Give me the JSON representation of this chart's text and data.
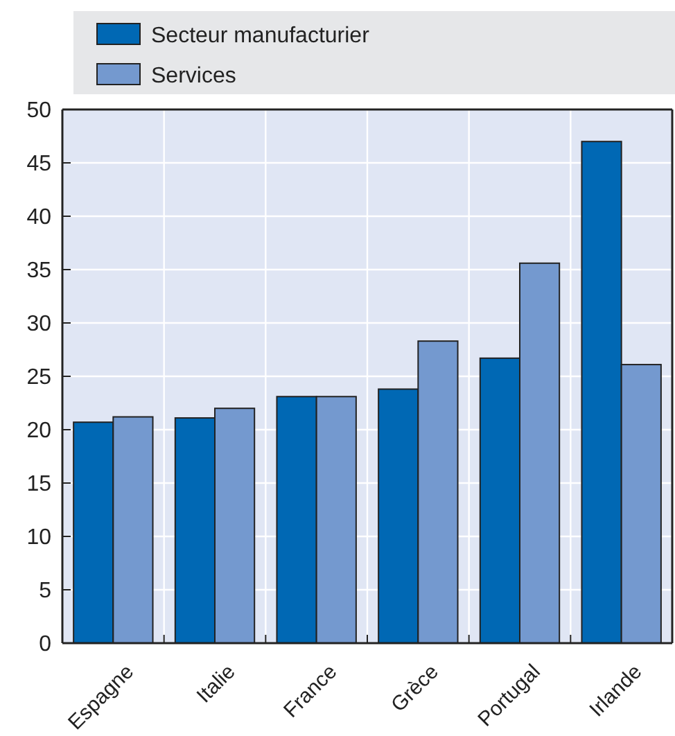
{
  "chart_data": {
    "type": "bar",
    "categories": [
      "Espagne",
      "Italie",
      "France",
      "Grèce",
      "Portugal",
      "Irlande"
    ],
    "series": [
      {
        "name": "Secteur manufacturier",
        "color": "#0068b4",
        "values": [
          20.7,
          21.1,
          23.1,
          23.8,
          26.7,
          47.0
        ]
      },
      {
        "name": "Services",
        "color": "#7499cf",
        "values": [
          21.2,
          22.0,
          23.1,
          28.3,
          35.6,
          26.1
        ]
      }
    ],
    "ylim": [
      0,
      50
    ],
    "yticks": [
      0,
      5,
      10,
      15,
      20,
      25,
      30,
      35,
      40,
      45,
      50
    ],
    "grid": true,
    "legend": "top left"
  }
}
